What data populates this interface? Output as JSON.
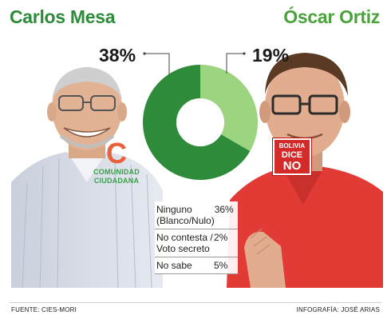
{
  "header": {
    "left_name": "Carlos Mesa",
    "right_name": "Óscar Ortiz"
  },
  "logos": {
    "party_left_line1": "COMUNIDAD",
    "party_left_line2": "CIUDADANA",
    "party_right_line1": "BOLIVIA",
    "party_right_line2": "DICE",
    "party_right_line3": "NO"
  },
  "chart_data": {
    "type": "pie",
    "style": "donut",
    "slices": [
      {
        "label": "Carlos Mesa",
        "value": 38,
        "display": "38%",
        "color": "#2e8b3a"
      },
      {
        "label": "Óscar Ortiz",
        "value": 19,
        "display": "19%",
        "color": "#9dd47f"
      }
    ],
    "others": [
      {
        "label": "Ninguno (Blanco/Nulo)",
        "value": 36,
        "display": "36%"
      },
      {
        "label": "No contesta / Voto secreto",
        "value": 2,
        "display": "2%"
      },
      {
        "label": "No sabe",
        "value": 5,
        "display": "5%"
      }
    ]
  },
  "colors": {
    "mesa_green": "#2e8b3a",
    "ortiz_green": "#8cc63f",
    "ortiz_shirt": "#e23a35"
  },
  "footer": {
    "source": "FUENTE: CIES-MORI",
    "credit": "INFOGRAFÍA: JOSÉ ARIAS"
  }
}
